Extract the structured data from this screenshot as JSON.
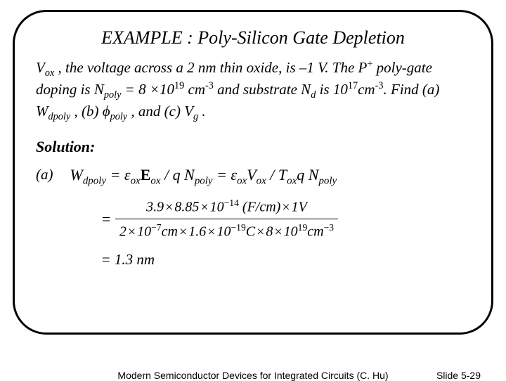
{
  "title": "EXAMPLE : Poly-Silicon Gate Depletion",
  "problem": {
    "p1a": "V",
    "p1b": " , the voltage across a 2 nm thin oxide, is –1 V. The P",
    "p1c": " poly-gate doping is N",
    "p1d": " = 8 ×10",
    "p1e": " cm",
    "p1f": " and substrate N",
    "p1g": " is 10",
    "p1h": "cm",
    "p1i": ". Find (a) W",
    "p1j": " , (b) ",
    "p1k": " , and (c) V",
    "p1l": " .",
    "sub_ox": "ox",
    "sup_plus": "+",
    "sub_poly": "poly",
    "sup_19": "19",
    "sup_neg3": "-3",
    "sub_d": "d",
    "sup_17": "17",
    "sub_dpoly": "dpoly",
    "phi": "ϕ",
    "sub_g": "g"
  },
  "solution_label": "Solution:",
  "part_label": "(a)",
  "eq1": {
    "w": "W",
    "sub_dpoly": "dpoly",
    "eq": " = ε",
    "sub_ox1": "ox",
    "E_u": "E",
    "sub_ox2": "ox",
    "frac1": " / q N",
    "sub_poly1": "poly",
    "eq2": " = ε",
    "sub_ox3": "ox",
    "V": "V",
    "sub_ox4": "ox",
    "frac2": " / T",
    "sub_ox5": "ox",
    "qN": "q N",
    "sub_poly2": "poly"
  },
  "eq2": {
    "prefix": "= ",
    "num_a": "3.9",
    "num_b": "8.85",
    "num_c": "10",
    "num_c_sup": "−14",
    "num_d": "(F/cm)",
    "num_e": "1V",
    "den_a": "2",
    "den_b": "10",
    "den_b_sup": "−7",
    "den_c": "cm",
    "den_d": "1.6",
    "den_e": "10",
    "den_e_sup": "−19",
    "den_f": "C",
    "den_g": "8",
    "den_h": "10",
    "den_h_sup": "19",
    "den_i": "cm",
    "den_i_sup": "−3"
  },
  "eq3": "= 1.3 nm",
  "footer_center": "Modern Semiconductor Devices for Integrated Circuits (C. Hu)",
  "footer_right": "Slide 5-29"
}
